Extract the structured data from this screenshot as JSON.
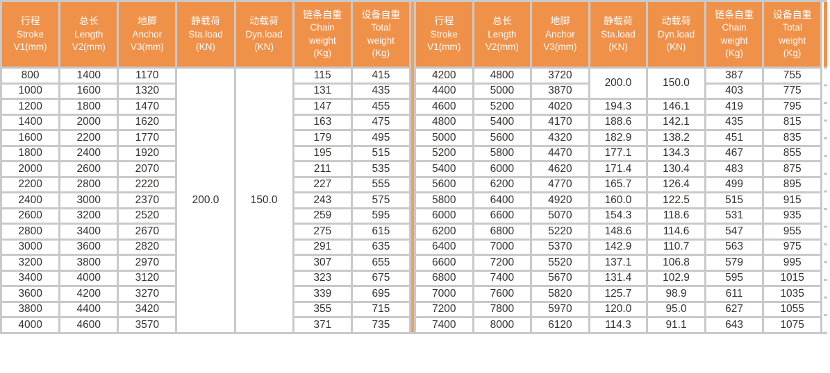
{
  "colors": {
    "accent_orange": "#F0914A",
    "divider_orange": "#F2A154",
    "border_gray": "#C9C9C9",
    "body_text": "#35302D",
    "header_text": "#FFFFFF"
  },
  "table": {
    "columns": [
      {
        "lines": [
          "行程",
          "Stroke",
          "V1(mm)"
        ]
      },
      {
        "lines": [
          "总长",
          "Length",
          "V2(mm)"
        ]
      },
      {
        "lines": [
          "地脚",
          "Anchor",
          "V3(mm)"
        ]
      },
      {
        "lines": [
          "静载荷",
          "Sta.load",
          "(KN)"
        ]
      },
      {
        "lines": [
          "动载荷",
          "Dyn.load",
          "(KN)"
        ]
      },
      {
        "lines": [
          "链条自重",
          "Chain",
          "weight",
          "(Kg)"
        ]
      },
      {
        "lines": [
          "设备自重",
          "Total",
          "weight",
          "(Kg)"
        ]
      }
    ],
    "left_section": {
      "merged_span": 17,
      "merged_sta_load": "200.0",
      "merged_dyn_load": "150.0",
      "rows": [
        [
          "800",
          "1400",
          "1170",
          null,
          null,
          "115",
          "415"
        ],
        [
          "1000",
          "1600",
          "1320",
          null,
          null,
          "131",
          "435"
        ],
        [
          "1200",
          "1800",
          "1470",
          null,
          null,
          "147",
          "455"
        ],
        [
          "1400",
          "2000",
          "1620",
          null,
          null,
          "163",
          "475"
        ],
        [
          "1600",
          "2200",
          "1770",
          null,
          null,
          "179",
          "495"
        ],
        [
          "1800",
          "2400",
          "1920",
          null,
          null,
          "195",
          "515"
        ],
        [
          "2000",
          "2600",
          "2070",
          null,
          null,
          "211",
          "535"
        ],
        [
          "2200",
          "2800",
          "2220",
          null,
          null,
          "227",
          "555"
        ],
        [
          "2400",
          "3000",
          "2370",
          null,
          null,
          "243",
          "575"
        ],
        [
          "2600",
          "3200",
          "2520",
          null,
          null,
          "259",
          "595"
        ],
        [
          "2800",
          "3400",
          "2670",
          null,
          null,
          "275",
          "615"
        ],
        [
          "3000",
          "3600",
          "2820",
          null,
          null,
          "291",
          "635"
        ],
        [
          "3200",
          "3800",
          "2970",
          null,
          null,
          "307",
          "655"
        ],
        [
          "3400",
          "4000",
          "3120",
          null,
          null,
          "323",
          "675"
        ],
        [
          "3600",
          "4200",
          "3270",
          null,
          null,
          "339",
          "695"
        ],
        [
          "3800",
          "4400",
          "3420",
          null,
          null,
          "355",
          "715"
        ],
        [
          "4000",
          "4600",
          "3570",
          null,
          null,
          "371",
          "735"
        ]
      ]
    },
    "right_section": {
      "merged_span": 2,
      "merged_sta_load": "200.0",
      "merged_dyn_load": "150.0",
      "rows": [
        [
          "4200",
          "4800",
          "3720",
          null,
          null,
          "387",
          "755"
        ],
        [
          "4400",
          "5000",
          "3870",
          null,
          null,
          "403",
          "775"
        ],
        [
          "4600",
          "5200",
          "4020",
          "194.3",
          "146.1",
          "419",
          "795"
        ],
        [
          "4800",
          "5400",
          "4170",
          "188.6",
          "142.1",
          "435",
          "815"
        ],
        [
          "5000",
          "5600",
          "4320",
          "182.9",
          "138.2",
          "451",
          "835"
        ],
        [
          "5200",
          "5800",
          "4470",
          "177.1",
          "134.3",
          "467",
          "855"
        ],
        [
          "5400",
          "6000",
          "4620",
          "171.4",
          "130.4",
          "483",
          "875"
        ],
        [
          "5600",
          "6200",
          "4770",
          "165.7",
          "126.4",
          "499",
          "895"
        ],
        [
          "5800",
          "6400",
          "4920",
          "160.0",
          "122.5",
          "515",
          "915"
        ],
        [
          "6000",
          "6600",
          "5070",
          "154.3",
          "118.6",
          "531",
          "935"
        ],
        [
          "6200",
          "6800",
          "5220",
          "148.6",
          "114.6",
          "547",
          "955"
        ],
        [
          "6400",
          "7000",
          "5370",
          "142.9",
          "110.7",
          "563",
          "975"
        ],
        [
          "6600",
          "7200",
          "5520",
          "137.1",
          "106.8",
          "579",
          "995"
        ],
        [
          "6800",
          "7400",
          "5670",
          "131.4",
          "102.9",
          "595",
          "1015"
        ],
        [
          "7000",
          "7600",
          "5820",
          "125.7",
          "98.9",
          "611",
          "1035"
        ],
        [
          "7200",
          "7800",
          "5970",
          "120.0",
          "95.0",
          "627",
          "1055"
        ],
        [
          "7400",
          "8000",
          "6120",
          "114.3",
          "91.1",
          "643",
          "1075"
        ]
      ]
    }
  }
}
